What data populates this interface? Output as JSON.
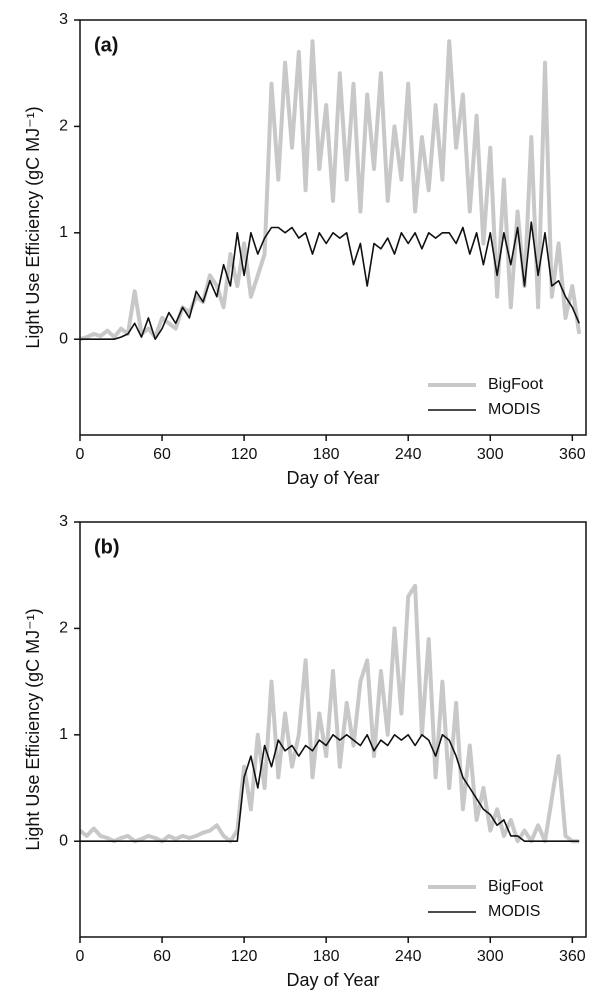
{
  "chart_data": [
    {
      "type": "line",
      "label": "(a)",
      "x_label": "Day of Year",
      "y_label": "Light Use Efficiency (gC MJ⁻¹)",
      "xlim": [
        0,
        370
      ],
      "xticks": [
        0,
        60,
        120,
        180,
        240,
        300,
        360
      ],
      "ylim": [
        -0.9,
        3
      ],
      "yticks": [
        0,
        1,
        2,
        3
      ],
      "legend": "lower right",
      "x": [
        0,
        5,
        10,
        15,
        20,
        25,
        30,
        35,
        40,
        45,
        50,
        55,
        60,
        65,
        70,
        75,
        80,
        85,
        90,
        95,
        100,
        105,
        110,
        115,
        120,
        125,
        130,
        135,
        140,
        145,
        150,
        155,
        160,
        165,
        170,
        175,
        180,
        185,
        190,
        195,
        200,
        205,
        210,
        215,
        220,
        225,
        230,
        235,
        240,
        245,
        250,
        255,
        260,
        265,
        270,
        275,
        280,
        285,
        290,
        295,
        300,
        305,
        310,
        315,
        320,
        325,
        330,
        335,
        340,
        345,
        350,
        355,
        360,
        365
      ],
      "series": [
        {
          "name": "BigFoot",
          "color": "#c8c8c8",
          "line_width": 4,
          "values": [
            0,
            0.02,
            0.05,
            0.03,
            0.08,
            0.02,
            0.1,
            0.05,
            0.45,
            0.05,
            0.1,
            0.02,
            0.2,
            0.15,
            0.1,
            0.3,
            0.25,
            0.4,
            0.35,
            0.6,
            0.5,
            0.3,
            0.8,
            0.5,
            0.9,
            0.4,
            0.6,
            0.8,
            2.4,
            1.5,
            2.6,
            1.8,
            2.7,
            1.4,
            2.8,
            1.6,
            2.2,
            1.3,
            2.5,
            1.5,
            2.4,
            1.2,
            2.3,
            1.6,
            2.5,
            1.3,
            2.0,
            1.5,
            2.4,
            1.2,
            1.9,
            1.4,
            2.2,
            1.5,
            2.8,
            1.8,
            2.3,
            1.2,
            2.1,
            0.9,
            1.8,
            0.4,
            1.5,
            0.3,
            1.2,
            0.5,
            1.9,
            0.3,
            2.6,
            0.4,
            0.9,
            0.2,
            0.5,
            0.05
          ]
        },
        {
          "name": "MODIS",
          "color": "#111111",
          "line_width": 1.6,
          "values": [
            0,
            0,
            0,
            0,
            0,
            0,
            0.02,
            0.05,
            0.15,
            0.02,
            0.2,
            0,
            0.1,
            0.25,
            0.15,
            0.3,
            0.2,
            0.45,
            0.35,
            0.55,
            0.4,
            0.7,
            0.5,
            1.0,
            0.6,
            1.0,
            0.8,
            0.95,
            1.05,
            1.05,
            1.0,
            1.05,
            0.95,
            1.0,
            0.8,
            1.0,
            0.9,
            1.0,
            0.95,
            1.0,
            0.7,
            0.9,
            0.5,
            0.9,
            0.85,
            0.95,
            0.8,
            1.0,
            0.9,
            1.0,
            0.85,
            1.0,
            0.95,
            1.0,
            1.0,
            0.9,
            1.05,
            0.8,
            1.0,
            0.7,
            1.0,
            0.6,
            1.0,
            0.7,
            1.05,
            0.5,
            1.1,
            0.6,
            1.0,
            0.5,
            0.55,
            0.4,
            0.3,
            0.15
          ]
        }
      ]
    },
    {
      "type": "line",
      "label": "(b)",
      "x_label": "Day of Year",
      "y_label": "Light Use Efficiency (gC MJ⁻¹)",
      "xlim": [
        0,
        370
      ],
      "xticks": [
        0,
        60,
        120,
        180,
        240,
        300,
        360
      ],
      "ylim": [
        -0.9,
        3
      ],
      "yticks": [
        0,
        1,
        2,
        3
      ],
      "legend": "lower right",
      "x": [
        0,
        5,
        10,
        15,
        20,
        25,
        30,
        35,
        40,
        45,
        50,
        55,
        60,
        65,
        70,
        75,
        80,
        85,
        90,
        95,
        100,
        105,
        110,
        115,
        120,
        125,
        130,
        135,
        140,
        145,
        150,
        155,
        160,
        165,
        170,
        175,
        180,
        185,
        190,
        195,
        200,
        205,
        210,
        215,
        220,
        225,
        230,
        235,
        240,
        245,
        250,
        255,
        260,
        265,
        270,
        275,
        280,
        285,
        290,
        295,
        300,
        305,
        310,
        315,
        320,
        325,
        330,
        335,
        340,
        345,
        350,
        355,
        360,
        365
      ],
      "series": [
        {
          "name": "BigFoot",
          "color": "#c8c8c8",
          "line_width": 4,
          "values": [
            0.1,
            0.05,
            0.12,
            0.05,
            0.03,
            0,
            0.03,
            0.05,
            0,
            0.02,
            0.05,
            0.03,
            0,
            0.05,
            0.02,
            0.05,
            0.03,
            0.05,
            0.08,
            0.1,
            0.15,
            0.05,
            0,
            0.1,
            0.7,
            0.3,
            1.0,
            0.5,
            1.5,
            0.6,
            1.2,
            0.7,
            1.0,
            1.7,
            0.6,
            1.2,
            0.8,
            1.6,
            0.7,
            1.3,
            0.9,
            1.5,
            1.7,
            0.8,
            1.6,
            1.0,
            2.0,
            1.2,
            2.3,
            2.4,
            1.0,
            1.9,
            0.6,
            1.5,
            0.5,
            1.3,
            0.3,
            0.9,
            0.2,
            0.5,
            0.1,
            0.3,
            0.05,
            0.2,
            0,
            0.1,
            0,
            0.15,
            0,
            0.4,
            0.8,
            0.05,
            0,
            0
          ]
        },
        {
          "name": "MODIS",
          "color": "#111111",
          "line_width": 1.6,
          "values": [
            0,
            0,
            0,
            0,
            0,
            0,
            0,
            0,
            0,
            0,
            0,
            0,
            0,
            0,
            0,
            0,
            0,
            0,
            0,
            0,
            0,
            0,
            0,
            0,
            0.6,
            0.8,
            0.5,
            0.9,
            0.7,
            0.95,
            0.85,
            0.9,
            0.8,
            0.9,
            0.85,
            0.95,
            0.9,
            1.0,
            0.95,
            1.0,
            0.95,
            0.9,
            1.0,
            0.85,
            0.95,
            0.9,
            1.0,
            0.95,
            1.0,
            0.9,
            1.0,
            0.95,
            0.8,
            1.0,
            0.95,
            0.8,
            0.6,
            0.5,
            0.4,
            0.3,
            0.25,
            0.15,
            0.2,
            0.05,
            0.05,
            0,
            0,
            0,
            0,
            0,
            0,
            0,
            0,
            0
          ]
        }
      ]
    }
  ]
}
